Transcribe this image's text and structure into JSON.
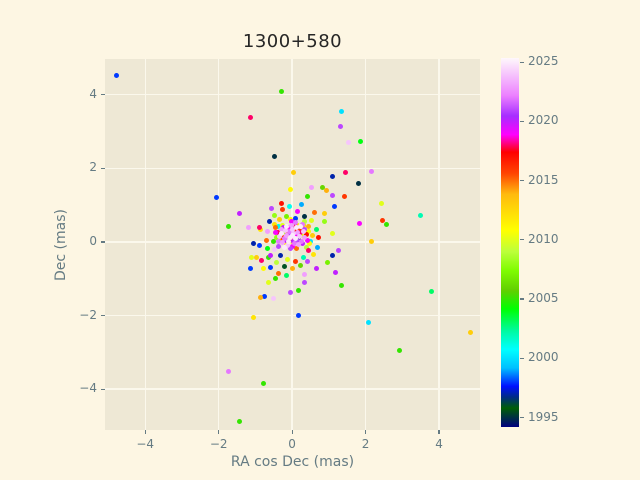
{
  "figure": {
    "background": "#fdf6e3",
    "axes_background": "#eee8d5",
    "grid_color": "#fbf8ec",
    "text_color": "#657b83",
    "title_color": "#262626"
  },
  "chart_data": {
    "type": "scatter",
    "title": "1300+580",
    "xlabel": "RA cos Dec (mas)",
    "ylabel": "Dec (mas)",
    "xlim": [
      -5.095,
      5.115
    ],
    "ylim": [
      -5.11,
      4.97
    ],
    "xticks": [
      -4,
      -2,
      0,
      2,
      4
    ],
    "yticks": [
      -4,
      -2,
      0,
      2,
      4
    ],
    "grid": true,
    "marker_size_px": 5,
    "colorbar": {
      "label": "",
      "min": 1994.2,
      "max": 2025.35,
      "ticks": [
        1995,
        2000,
        2005,
        2010,
        2015,
        2020,
        2025
      ],
      "colormap_name": "gist_ncar",
      "stops": [
        {
          "t": 0.0,
          "c": "#000080"
        },
        {
          "t": 0.051,
          "c": "#005f06"
        },
        {
          "t": 0.08,
          "c": "#002d81"
        },
        {
          "t": 0.11,
          "c": "#0010ff"
        },
        {
          "t": 0.16,
          "c": "#00c0ff"
        },
        {
          "t": 0.21,
          "c": "#00ffff"
        },
        {
          "t": 0.26,
          "c": "#00faa1"
        },
        {
          "t": 0.32,
          "c": "#00ff03"
        },
        {
          "t": 0.37,
          "c": "#62cf00"
        },
        {
          "t": 0.424,
          "c": "#80fc00"
        },
        {
          "t": 0.475,
          "c": "#bbff3b"
        },
        {
          "t": 0.533,
          "c": "#ffff00"
        },
        {
          "t": 0.631,
          "c": "#ffba0e"
        },
        {
          "t": 0.686,
          "c": "#ff4701"
        },
        {
          "t": 0.745,
          "c": "#ff0000"
        },
        {
          "t": 0.792,
          "c": "#ff00fe"
        },
        {
          "t": 0.843,
          "c": "#a62dff"
        },
        {
          "t": 0.898,
          "c": "#ec80ff"
        },
        {
          "t": 1.0,
          "c": "#fef8fb"
        }
      ]
    },
    "points": [
      [
        -4.77,
        4.51,
        1998
      ],
      [
        -0.3,
        4.08,
        2005
      ],
      [
        -1.12,
        3.38,
        2018
      ],
      [
        1.34,
        3.54,
        2000
      ],
      [
        1.31,
        3.14,
        2021
      ],
      [
        1.53,
        2.7,
        2024
      ],
      [
        1.85,
        2.73,
        2004
      ],
      [
        -0.49,
        2.32,
        1995
      ],
      [
        2.15,
        1.92,
        2022
      ],
      [
        1.09,
        1.78,
        1997
      ],
      [
        1.44,
        1.89,
        2018
      ],
      [
        0.03,
        1.89,
        2013
      ],
      [
        1.8,
        1.59,
        1995
      ],
      [
        -2.07,
        1.22,
        1998
      ],
      [
        2.42,
        1.05,
        2010
      ],
      [
        3.49,
        0.73,
        2002
      ],
      [
        2.45,
        0.57,
        2016
      ],
      [
        2.56,
        0.46,
        2005
      ],
      [
        4.85,
        -2.46,
        2013
      ],
      [
        3.79,
        -1.35,
        2003
      ],
      [
        2.92,
        -2.95,
        2005
      ],
      [
        2.07,
        -2.19,
        2000
      ],
      [
        2.15,
        0.0,
        2013
      ],
      [
        -1.42,
        0.78,
        2020
      ],
      [
        -1.72,
        0.41,
        2005
      ],
      [
        -1.74,
        -3.51,
        2022
      ],
      [
        -0.79,
        -3.84,
        2005
      ],
      [
        -1.44,
        -4.89,
        2005
      ],
      [
        0.16,
        -2.0,
        1998
      ],
      [
        -1.04,
        -2.05,
        2012
      ],
      [
        -0.05,
        -1.38,
        2021
      ],
      [
        -0.76,
        -1.49,
        1998
      ],
      [
        -0.52,
        -1.54,
        2024
      ],
      [
        1.25,
        -0.22,
        2021
      ],
      [
        1.09,
        -0.38,
        1997
      ],
      [
        1.17,
        -0.84,
        2020
      ],
      [
        1.34,
        -1.19,
        2005
      ],
      [
        -0.65,
        -1.11,
        2010
      ],
      [
        -0.44,
        -1.0,
        2005
      ],
      [
        0.52,
        1.49,
        2023
      ],
      [
        0.84,
        1.49,
        2006
      ],
      [
        1.09,
        1.27,
        2021
      ],
      [
        1.42,
        1.24,
        2016
      ],
      [
        0.41,
        1.24,
        2005
      ],
      [
        1.14,
        0.95,
        1998
      ],
      [
        1.83,
        0.49,
        2019
      ],
      [
        0.87,
        0.76,
        2013
      ],
      [
        1.09,
        0.24,
        2010
      ],
      [
        -1.04,
        -0.03,
        1997
      ],
      [
        -0.9,
        -0.11,
        1998
      ],
      [
        -0.98,
        -0.43,
        2013
      ],
      [
        -0.65,
        -0.41,
        2005
      ],
      [
        -0.84,
        -0.51,
        2018
      ],
      [
        -0.6,
        -0.7,
        1998
      ],
      [
        -0.38,
        -0.86,
        2015
      ],
      [
        -0.05,
        1.43,
        2011
      ],
      [
        0.93,
        1.41,
        2014
      ],
      [
        -1.2,
        0.4,
        2023
      ],
      [
        -1.12,
        -0.73,
        1998
      ],
      [
        0.65,
        -0.73,
        2020
      ],
      [
        0.16,
        -1.33,
        2005
      ],
      [
        -0.85,
        -1.52,
        2014
      ],
      [
        0.33,
        -1.1,
        2021
      ],
      [
        -1.1,
        -0.42,
        2010
      ],
      [
        -0.9,
        0.38,
        2018
      ],
      [
        -0.62,
        0.55,
        1997
      ],
      [
        -0.48,
        0.72,
        2008
      ],
      [
        -0.25,
        0.88,
        2016
      ],
      [
        -0.07,
        0.95,
        2001
      ],
      [
        0.14,
        0.83,
        2019
      ],
      [
        0.33,
        0.69,
        1995
      ],
      [
        0.52,
        0.58,
        2010
      ],
      [
        0.66,
        0.34,
        2003
      ],
      [
        0.73,
        0.12,
        2017
      ],
      [
        0.69,
        -0.14,
        1999
      ],
      [
        0.58,
        -0.35,
        2012
      ],
      [
        0.41,
        -0.52,
        2021
      ],
      [
        0.22,
        -0.64,
        2006
      ],
      [
        0.02,
        -0.71,
        2014
      ],
      [
        -0.21,
        -0.66,
        1996
      ],
      [
        -0.42,
        -0.55,
        2009
      ],
      [
        -0.58,
        -0.38,
        2020
      ],
      [
        -0.68,
        -0.18,
        2004
      ],
      [
        -0.71,
        0.05,
        2015
      ],
      [
        -0.66,
        0.28,
        2023
      ],
      [
        -0.35,
        0.62,
        2013
      ],
      [
        -0.15,
        0.7,
        2007
      ],
      [
        0.08,
        0.64,
        1998
      ],
      [
        0.28,
        0.48,
        2022
      ],
      [
        0.45,
        0.28,
        2011
      ],
      [
        0.51,
        0.02,
        2000
      ],
      [
        0.44,
        -0.22,
        2018
      ],
      [
        0.3,
        -0.42,
        2002
      ],
      [
        0.1,
        -0.52,
        2016
      ],
      [
        -0.12,
        -0.48,
        2010
      ],
      [
        -0.33,
        -0.38,
        1997
      ],
      [
        -0.47,
        -0.2,
        2024
      ],
      [
        -0.52,
        0.02,
        2005
      ],
      [
        -0.46,
        0.25,
        2019
      ],
      [
        -0.38,
        0.43,
        2001
      ],
      [
        0.88,
        0.55,
        2008
      ],
      [
        -0.85,
        0.35,
        2012
      ],
      [
        -0.28,
        1.05,
        2017
      ],
      [
        0.25,
        1.02,
        1999
      ],
      [
        -0.55,
        0.92,
        2021
      ],
      [
        0.6,
        0.8,
        2015
      ],
      [
        0.95,
        -0.55,
        2007
      ],
      [
        -0.78,
        -0.72,
        2011
      ],
      [
        0.35,
        -0.88,
        2023
      ],
      [
        -0.15,
        -0.92,
        2003
      ],
      [
        -0.05,
        0.12,
        2025
      ],
      [
        0.03,
        0.22,
        2024
      ],
      [
        -0.14,
        0.18,
        2023
      ],
      [
        0.1,
        0.08,
        2025
      ],
      [
        -0.22,
        0.1,
        2022
      ],
      [
        0.0,
        0.33,
        2024
      ],
      [
        -0.1,
        0.02,
        2025
      ],
      [
        0.15,
        0.25,
        2023
      ],
      [
        -0.18,
        0.3,
        2024
      ],
      [
        0.06,
        -0.05,
        2022
      ],
      [
        -0.28,
        0.22,
        2025
      ],
      [
        0.2,
        0.15,
        2024
      ],
      [
        -0.02,
        0.45,
        2023
      ],
      [
        -0.12,
        -0.1,
        2024
      ],
      [
        0.12,
        0.38,
        2025
      ],
      [
        -0.25,
        -0.02,
        2023
      ],
      [
        0.25,
        0.02,
        2022
      ],
      [
        -0.35,
        0.15,
        2024
      ],
      [
        0.02,
        0.18,
        2025
      ],
      [
        -0.08,
        0.28,
        2022
      ],
      [
        0.18,
        -0.08,
        2023
      ],
      [
        -0.15,
        0.42,
        2025
      ],
      [
        0.3,
        0.28,
        2024
      ],
      [
        -0.3,
        0.35,
        2023
      ],
      [
        0.08,
        0.52,
        2022
      ],
      [
        -0.05,
        -0.18,
        2021
      ],
      [
        0.22,
        0.42,
        2025
      ],
      [
        -0.38,
        0.02,
        2022
      ],
      [
        0.33,
        0.12,
        2023
      ],
      [
        -0.2,
        -0.15,
        2025
      ],
      [
        0.05,
        0.02,
        2020
      ],
      [
        -0.02,
        0.08,
        2018
      ],
      [
        0.13,
        0.18,
        2019
      ],
      [
        -0.17,
        0.05,
        2020
      ],
      [
        0.07,
        0.3,
        2017
      ],
      [
        -0.09,
        0.38,
        2019
      ],
      [
        0.24,
        0.25,
        2018
      ],
      [
        -0.27,
        0.12,
        2016
      ],
      [
        0.16,
        0.02,
        2021
      ],
      [
        -0.06,
        0.22,
        2021
      ],
      [
        0.01,
        -0.12,
        2019
      ],
      [
        -0.32,
        0.28,
        2017
      ],
      [
        0.28,
        -0.05,
        2020
      ],
      [
        -0.13,
        0.25,
        2016
      ],
      [
        0.09,
        0.42,
        2018
      ],
      [
        -0.23,
        0.4,
        2020
      ],
      [
        0.35,
        0.35,
        2021
      ],
      [
        -0.4,
        0.25,
        2018
      ],
      [
        0.19,
        0.32,
        2016
      ],
      [
        -0.03,
        0.55,
        2019
      ],
      [
        0.38,
        0.2,
        2017
      ],
      [
        -0.36,
        -0.12,
        2021
      ],
      [
        0.12,
        -0.18,
        2015
      ],
      [
        -0.44,
        0.4,
        2015
      ],
      [
        0.42,
        0.05,
        2019
      ],
      [
        0.05,
        0.15,
        2014
      ],
      [
        -0.1,
        0.2,
        2013
      ],
      [
        0.18,
        0.1,
        1995
      ],
      [
        -0.2,
        0.25,
        2009
      ],
      [
        0.0,
        0.0,
        2012
      ],
      [
        -0.3,
        0.08,
        2014
      ],
      [
        0.25,
        0.18,
        2010
      ],
      [
        -0.02,
        0.35,
        2008
      ],
      [
        0.15,
        0.45,
        2012
      ],
      [
        -0.15,
        -0.05,
        2011
      ],
      [
        0.3,
        0.45,
        2013
      ],
      [
        -0.25,
        0.45,
        2010
      ],
      [
        0.45,
        0.42,
        2014
      ],
      [
        -0.42,
        0.12,
        2008
      ],
      [
        0.4,
        -0.15,
        2009
      ],
      [
        -0.05,
        0.62,
        2011
      ],
      [
        0.55,
        0.18,
        2013
      ],
      [
        -0.48,
        0.48,
        2012
      ],
      [
        0.35,
        0.55,
        2009
      ],
      [
        0.48,
        -0.05,
        2011
      ]
    ]
  }
}
